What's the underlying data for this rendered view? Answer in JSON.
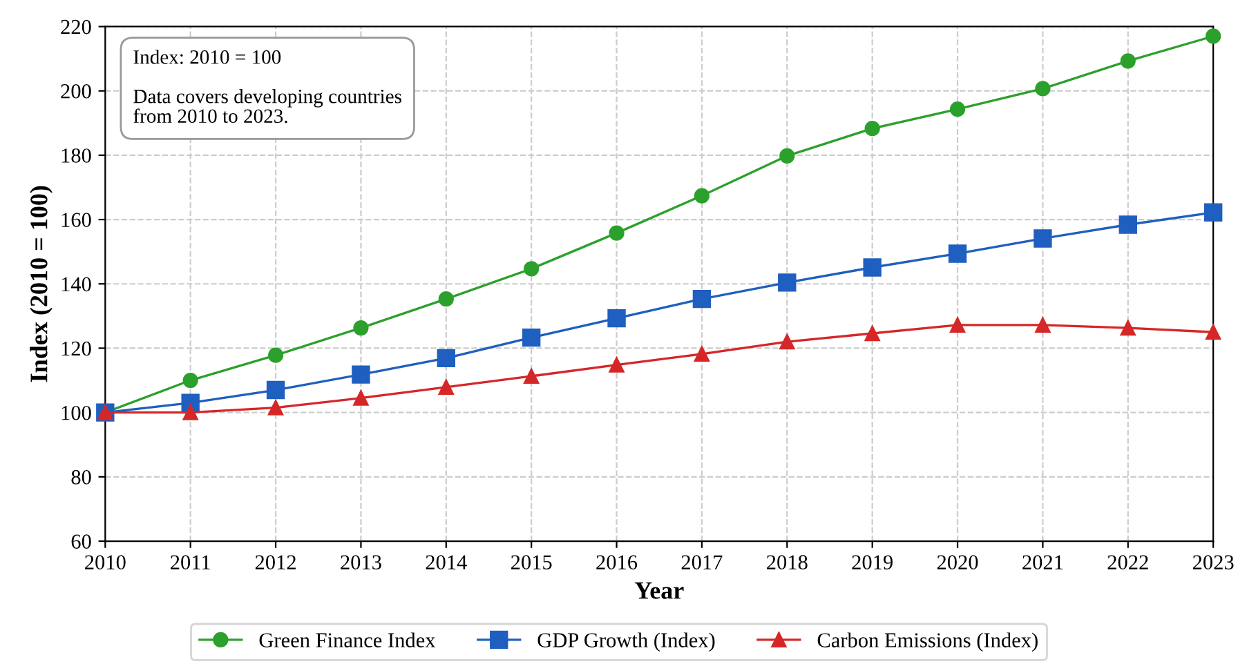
{
  "chart_data": {
    "type": "line",
    "xlabel": "Year",
    "ylabel": "Index (2010 = 100)",
    "x": [
      2010,
      2011,
      2012,
      2013,
      2014,
      2015,
      2016,
      2017,
      2018,
      2019,
      2020,
      2021,
      2022,
      2023
    ],
    "series": [
      {
        "name": "Green Finance Index",
        "color": "#2ca02c",
        "marker": "circle",
        "values": [
          100,
          110,
          117.8,
          126.3,
          135.3,
          144.7,
          155.8,
          167.4,
          179.8,
          188.3,
          194.3,
          200.7,
          209.3,
          217
        ]
      },
      {
        "name": "GDP Growth (Index)",
        "color": "#1f5fbf",
        "marker": "square",
        "values": [
          100,
          103,
          107,
          111.8,
          116.9,
          123.3,
          129.3,
          135.3,
          140.4,
          145.1,
          149.4,
          154.1,
          158.4,
          162.2
        ]
      },
      {
        "name": "Carbon Emissions (Index)",
        "color": "#d62728",
        "marker": "triangle",
        "values": [
          100,
          100,
          101.5,
          104.5,
          107.9,
          111.3,
          114.8,
          118.2,
          122,
          124.6,
          127.2,
          127.2,
          126.3,
          125
        ]
      }
    ],
    "xlim": [
      2010,
      2023
    ],
    "xticks": [
      2010,
      2011,
      2012,
      2013,
      2014,
      2015,
      2016,
      2017,
      2018,
      2019,
      2020,
      2021,
      2022,
      2023
    ],
    "ylim": [
      60,
      220
    ],
    "yticks": [
      60,
      80,
      100,
      120,
      140,
      160,
      180,
      200,
      220
    ],
    "grid": true,
    "legend": "bottom",
    "line_style": "solid",
    "annotations": [
      "Index: 2010 = 100",
      "Data covers developing countries\nfrom 2010 to 2023."
    ]
  }
}
